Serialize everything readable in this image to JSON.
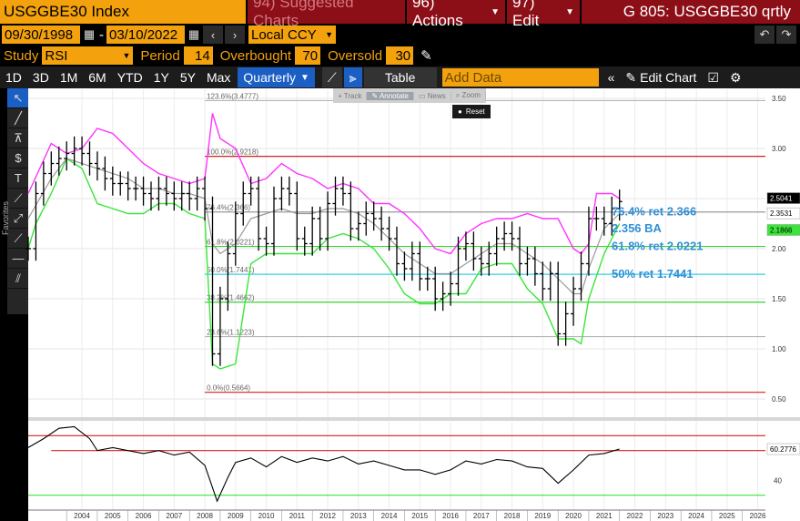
{
  "header": {
    "security": "USGGBE30 Index",
    "suggested": "94) Suggested Charts",
    "actions": "96) Actions",
    "edit": "97) Edit",
    "title": "G 805: USGGBE30 qrtly"
  },
  "dates": {
    "start": "09/30/1998",
    "sep": "-",
    "end": "03/10/2022",
    "ccy": "Local CCY"
  },
  "study": {
    "study_label": "Study",
    "study_value": "RSI",
    "period_label": "Period",
    "period_value": "14",
    "overbought_label": "Overbought",
    "overbought_value": "70",
    "oversold_label": "Oversold",
    "oversold_value": "30"
  },
  "ranges": [
    "1D",
    "3D",
    "1M",
    "6M",
    "YTD",
    "1Y",
    "5Y",
    "Max"
  ],
  "toolbar": {
    "frequency": "Quarterly",
    "table": "Table",
    "add_data": "Add Data",
    "edit_chart": "Edit Chart"
  },
  "chart_menu": {
    "track": "+ Track",
    "annotate": "✎ Annotate",
    "news": "▭ News",
    "zoom": "⌕ Zoom",
    "reset": "Reset"
  },
  "sidebar": {
    "favorites": "Favorites"
  },
  "colors": {
    "orange": "#f3a20e",
    "maroon": "#8c0e17",
    "blue_active": "#1b5fc4",
    "upper_band": "#ff33ff",
    "lower_band": "#39e639",
    "ma": "#999999",
    "fib_red": "#d42020",
    "fib_green": "#3ad13a",
    "fib_cyan": "#35d0e0",
    "label_blue": "#2f8fd8"
  },
  "chart_data": {
    "type": "bar",
    "price_axis": {
      "ticks": [
        "3.50",
        "3.00",
        "2.50",
        "2.00",
        "1.50",
        "1.00",
        "0.50"
      ],
      "ylim": [
        0.5,
        3.5
      ]
    },
    "rsi_axis": {
      "ticks": [
        "40"
      ],
      "ylim": [
        20,
        80
      ]
    },
    "x_ticks": [
      "2004",
      "2005",
      "2006",
      "2007",
      "2008",
      "2009",
      "2010",
      "2011",
      "2012",
      "2013",
      "2014",
      "2015",
      "2016",
      "2017",
      "2018",
      "2019",
      "2020",
      "2021",
      "2022",
      "2023",
      "2024",
      "2025",
      "2026"
    ],
    "fib_levels": [
      {
        "label": "123.6%(3.4777)",
        "value": 3.4777
      },
      {
        "label": "100.0%(2.9218)",
        "value": 2.9218
      },
      {
        "label": "76.4%(2.366)",
        "value": 2.366
      },
      {
        "label": "61.8%(2.0221)",
        "value": 2.0221
      },
      {
        "label": "50.0%(1.7441)",
        "value": 1.7441
      },
      {
        "label": "38.2%(1.4662)",
        "value": 1.4662
      },
      {
        "label": "23.6%(1.1223)",
        "value": 1.1223
      },
      {
        "label": "0.0%(0.5664)",
        "value": 0.5664
      }
    ],
    "annotations": [
      "76.4% ret 2.366",
      "2.356 BA",
      "61.8% ret 2.0221",
      "50% ret 1.7441"
    ],
    "last_values": {
      "upper": "2.5041",
      "ma": "2.3531",
      "lower": "2.1866",
      "rsi": "60.2776"
    },
    "rsi_levels": [
      70,
      30
    ],
    "ohlc_close": [
      [
        2002.75,
        2.0
      ],
      [
        2003.0,
        2.55
      ],
      [
        2003.25,
        2.75
      ],
      [
        2003.5,
        2.85
      ],
      [
        2003.75,
        2.9
      ],
      [
        2004.0,
        2.95
      ],
      [
        2004.25,
        3.0
      ],
      [
        2004.5,
        2.95
      ],
      [
        2004.75,
        2.85
      ],
      [
        2005.0,
        2.8
      ],
      [
        2005.25,
        2.7
      ],
      [
        2005.5,
        2.65
      ],
      [
        2005.75,
        2.65
      ],
      [
        2006.0,
        2.6
      ],
      [
        2006.25,
        2.6
      ],
      [
        2006.5,
        2.55
      ],
      [
        2006.75,
        2.5
      ],
      [
        2007.0,
        2.6
      ],
      [
        2007.25,
        2.55
      ],
      [
        2007.5,
        2.5
      ],
      [
        2007.75,
        2.55
      ],
      [
        2008.0,
        2.5
      ],
      [
        2008.25,
        2.6
      ],
      [
        2008.5,
        2.4
      ],
      [
        2008.75,
        0.95
      ],
      [
        2009.0,
        1.5
      ],
      [
        2009.25,
        1.95
      ],
      [
        2009.5,
        2.35
      ],
      [
        2009.75,
        2.55
      ],
      [
        2010.0,
        2.6
      ],
      [
        2010.25,
        2.1
      ],
      [
        2010.5,
        2.05
      ],
      [
        2010.75,
        2.5
      ],
      [
        2011.0,
        2.6
      ],
      [
        2011.25,
        2.55
      ],
      [
        2011.5,
        2.1
      ],
      [
        2011.75,
        2.05
      ],
      [
        2012.0,
        2.3
      ],
      [
        2012.25,
        2.1
      ],
      [
        2012.5,
        2.45
      ],
      [
        2012.75,
        2.6
      ],
      [
        2013.0,
        2.55
      ],
      [
        2013.25,
        2.2
      ],
      [
        2013.5,
        2.25
      ],
      [
        2013.75,
        2.35
      ],
      [
        2014.0,
        2.3
      ],
      [
        2014.25,
        2.2
      ],
      [
        2014.5,
        2.1
      ],
      [
        2014.75,
        1.85
      ],
      [
        2015.0,
        1.8
      ],
      [
        2015.25,
        1.95
      ],
      [
        2015.5,
        1.7
      ],
      [
        2015.75,
        1.7
      ],
      [
        2016.0,
        1.5
      ],
      [
        2016.25,
        1.55
      ],
      [
        2016.5,
        1.65
      ],
      [
        2016.75,
        2.0
      ],
      [
        2017.0,
        2.05
      ],
      [
        2017.25,
        1.9
      ],
      [
        2017.5,
        1.85
      ],
      [
        2017.75,
        1.95
      ],
      [
        2018.0,
        2.1
      ],
      [
        2018.25,
        2.15
      ],
      [
        2018.5,
        2.1
      ],
      [
        2018.75,
        1.85
      ],
      [
        2019.0,
        1.9
      ],
      [
        2019.25,
        1.75
      ],
      [
        2019.5,
        1.6
      ],
      [
        2019.75,
        1.75
      ],
      [
        2020.0,
        1.15
      ],
      [
        2020.25,
        1.35
      ],
      [
        2020.5,
        1.6
      ],
      [
        2020.75,
        1.85
      ],
      [
        2021.0,
        2.3
      ],
      [
        2021.25,
        2.3
      ],
      [
        2021.5,
        2.25
      ],
      [
        2021.75,
        2.4
      ],
      [
        2022.0,
        2.47
      ]
    ],
    "rsi": [
      [
        2002.75,
        62
      ],
      [
        2003.25,
        68
      ],
      [
        2003.75,
        75
      ],
      [
        2004.25,
        76
      ],
      [
        2004.75,
        68
      ],
      [
        2005.0,
        60
      ],
      [
        2005.5,
        62
      ],
      [
        2006.0,
        60
      ],
      [
        2006.5,
        58
      ],
      [
        2007.0,
        60
      ],
      [
        2007.5,
        57
      ],
      [
        2008.0,
        59
      ],
      [
        2008.5,
        50
      ],
      [
        2008.9,
        26
      ],
      [
        2009.25,
        42
      ],
      [
        2009.5,
        52
      ],
      [
        2010.0,
        55
      ],
      [
        2010.5,
        49
      ],
      [
        2011.0,
        56
      ],
      [
        2011.5,
        52
      ],
      [
        2012.0,
        55
      ],
      [
        2012.5,
        53
      ],
      [
        2013.0,
        56
      ],
      [
        2013.5,
        51
      ],
      [
        2014.0,
        53
      ],
      [
        2014.5,
        50
      ],
      [
        2015.0,
        47
      ],
      [
        2015.5,
        47
      ],
      [
        2016.0,
        44
      ],
      [
        2016.5,
        47
      ],
      [
        2017.0,
        53
      ],
      [
        2017.5,
        51
      ],
      [
        2018.0,
        54
      ],
      [
        2018.5,
        53
      ],
      [
        2019.0,
        49
      ],
      [
        2019.5,
        48
      ],
      [
        2019.85,
        41
      ],
      [
        2020.0,
        38
      ],
      [
        2020.5,
        47
      ],
      [
        2021.0,
        57
      ],
      [
        2021.5,
        58
      ],
      [
        2022.0,
        61
      ]
    ],
    "upper_band": [
      [
        2002.75,
        2.55
      ],
      [
        2003.5,
        3.05
      ],
      [
        2004.0,
        2.95
      ],
      [
        2004.5,
        3.0
      ],
      [
        2005.0,
        3.2
      ],
      [
        2005.5,
        3.15
      ],
      [
        2006.0,
        3.0
      ],
      [
        2006.5,
        2.85
      ],
      [
        2007.0,
        2.75
      ],
      [
        2007.5,
        2.7
      ],
      [
        2008.0,
        2.65
      ],
      [
        2008.5,
        2.7
      ],
      [
        2008.75,
        3.35
      ],
      [
        2009.0,
        3.1
      ],
      [
        2009.5,
        3.0
      ],
      [
        2010.0,
        2.65
      ],
      [
        2010.5,
        2.7
      ],
      [
        2011.0,
        2.85
      ],
      [
        2011.5,
        2.75
      ],
      [
        2012.0,
        2.7
      ],
      [
        2012.5,
        2.6
      ],
      [
        2013.0,
        2.65
      ],
      [
        2013.5,
        2.6
      ],
      [
        2014.0,
        2.45
      ],
      [
        2014.5,
        2.45
      ],
      [
        2015.0,
        2.35
      ],
      [
        2015.5,
        2.2
      ],
      [
        2016.0,
        2.0
      ],
      [
        2016.5,
        1.95
      ],
      [
        2017.0,
        2.15
      ],
      [
        2017.5,
        2.25
      ],
      [
        2018.0,
        2.3
      ],
      [
        2018.5,
        2.3
      ],
      [
        2019.0,
        2.35
      ],
      [
        2019.5,
        2.3
      ],
      [
        2020.0,
        2.3
      ],
      [
        2020.5,
        2.0
      ],
      [
        2020.75,
        1.95
      ],
      [
        2021.0,
        2.05
      ],
      [
        2021.25,
        2.55
      ],
      [
        2021.75,
        2.55
      ],
      [
        2022.0,
        2.5
      ]
    ],
    "lower_band": [
      [
        2002.75,
        2.0
      ],
      [
        2003.0,
        2.25
      ],
      [
        2003.5,
        2.55
      ],
      [
        2004.0,
        2.9
      ],
      [
        2004.5,
        2.8
      ],
      [
        2005.0,
        2.45
      ],
      [
        2005.5,
        2.4
      ],
      [
        2006.0,
        2.35
      ],
      [
        2006.5,
        2.35
      ],
      [
        2007.0,
        2.45
      ],
      [
        2007.5,
        2.45
      ],
      [
        2008.0,
        2.35
      ],
      [
        2008.5,
        2.3
      ],
      [
        2008.75,
        0.85
      ],
      [
        2009.0,
        0.8
      ],
      [
        2009.5,
        0.85
      ],
      [
        2010.0,
        1.85
      ],
      [
        2010.5,
        1.95
      ],
      [
        2011.0,
        1.95
      ],
      [
        2011.5,
        1.95
      ],
      [
        2012.0,
        1.95
      ],
      [
        2012.5,
        2.1
      ],
      [
        2013.0,
        2.15
      ],
      [
        2013.5,
        2.1
      ],
      [
        2014.0,
        2.0
      ],
      [
        2014.5,
        1.8
      ],
      [
        2015.0,
        1.55
      ],
      [
        2015.5,
        1.45
      ],
      [
        2016.0,
        1.45
      ],
      [
        2016.5,
        1.55
      ],
      [
        2017.0,
        1.55
      ],
      [
        2017.5,
        1.8
      ],
      [
        2018.0,
        1.85
      ],
      [
        2018.5,
        1.85
      ],
      [
        2019.0,
        1.6
      ],
      [
        2019.5,
        1.45
      ],
      [
        2020.0,
        1.1
      ],
      [
        2020.5,
        1.1
      ],
      [
        2020.75,
        1.05
      ],
      [
        2021.0,
        1.5
      ],
      [
        2021.5,
        1.95
      ],
      [
        2022.0,
        2.25
      ]
    ],
    "moving_average": [
      [
        2002.75,
        2.3
      ],
      [
        2003.5,
        2.7
      ],
      [
        2004.0,
        2.9
      ],
      [
        2004.5,
        2.85
      ],
      [
        2005.0,
        2.8
      ],
      [
        2005.5,
        2.75
      ],
      [
        2006.0,
        2.7
      ],
      [
        2006.5,
        2.6
      ],
      [
        2007.0,
        2.6
      ],
      [
        2007.5,
        2.55
      ],
      [
        2008.0,
        2.55
      ],
      [
        2008.5,
        2.5
      ],
      [
        2008.75,
        2.05
      ],
      [
        2009.0,
        1.95
      ],
      [
        2009.5,
        2.05
      ],
      [
        2010.0,
        2.3
      ],
      [
        2010.5,
        2.35
      ],
      [
        2011.0,
        2.4
      ],
      [
        2011.5,
        2.35
      ],
      [
        2012.0,
        2.35
      ],
      [
        2012.5,
        2.4
      ],
      [
        2013.0,
        2.4
      ],
      [
        2013.5,
        2.35
      ],
      [
        2014.0,
        2.25
      ],
      [
        2014.5,
        2.1
      ],
      [
        2015.0,
        1.95
      ],
      [
        2015.5,
        1.85
      ],
      [
        2016.0,
        1.75
      ],
      [
        2016.5,
        1.75
      ],
      [
        2017.0,
        1.85
      ],
      [
        2017.5,
        1.95
      ],
      [
        2018.0,
        2.05
      ],
      [
        2018.5,
        2.05
      ],
      [
        2019.0,
        1.95
      ],
      [
        2019.5,
        1.85
      ],
      [
        2020.0,
        1.7
      ],
      [
        2020.5,
        1.55
      ],
      [
        2020.75,
        1.55
      ],
      [
        2021.0,
        1.8
      ],
      [
        2021.5,
        2.2
      ],
      [
        2022.0,
        2.35
      ]
    ]
  }
}
